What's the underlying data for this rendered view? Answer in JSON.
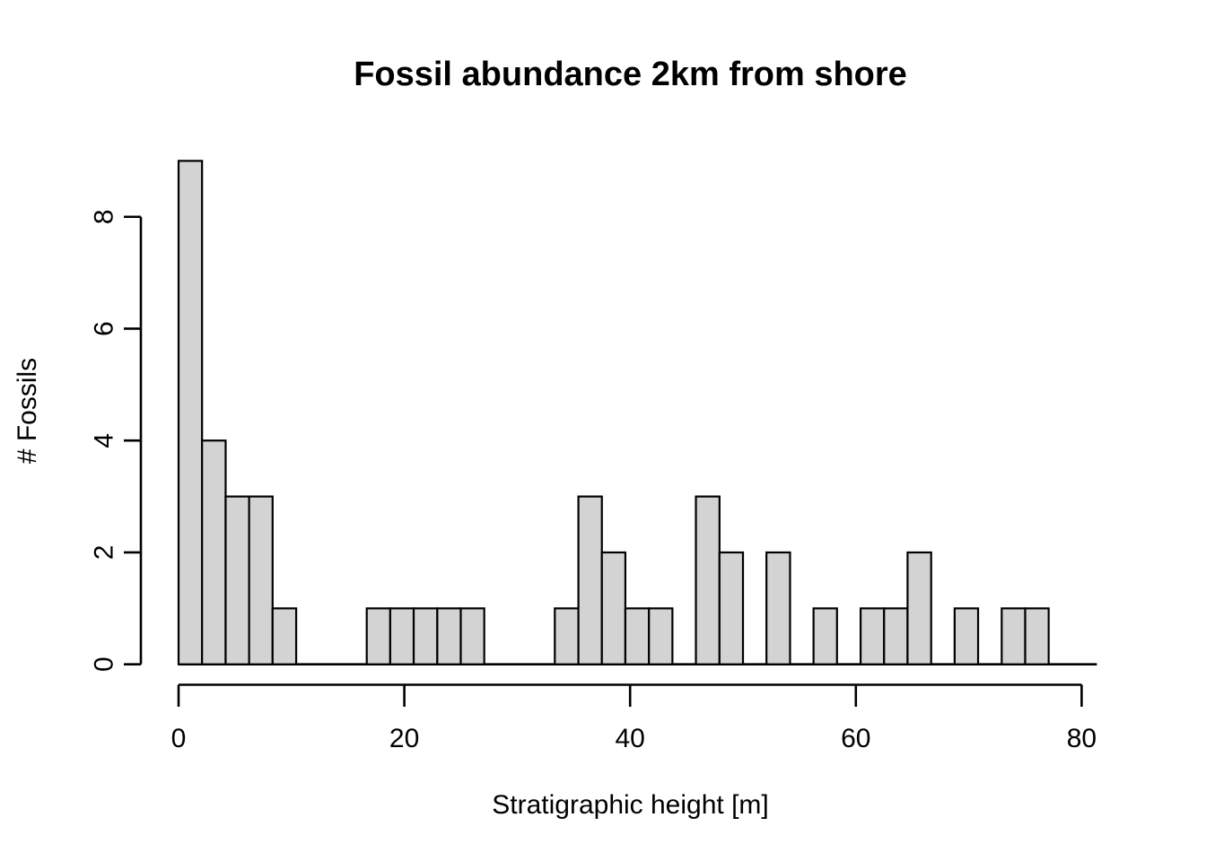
{
  "chart_data": {
    "type": "bar",
    "chart_kind": "histogram",
    "title": "Fossil abundance 2km from shore",
    "xlabel": "Stratigraphic height [m]",
    "ylabel": "# Fossils",
    "xlim": [
      0,
      80
    ],
    "ylim": [
      0,
      9
    ],
    "x_ticks": [
      0,
      20,
      40,
      60,
      80
    ],
    "y_ticks": [
      0,
      2,
      4,
      6,
      8
    ],
    "grid": "off",
    "legend": "none",
    "bin_width": 2.083,
    "bar_fill": "#d3d3d3",
    "bar_stroke": "#000000",
    "axis_color": "#000000",
    "text_color": "#000000",
    "bins": [
      {
        "start": 0,
        "end": 2.08,
        "count": 9
      },
      {
        "start": 2.08,
        "end": 4.17,
        "count": 4
      },
      {
        "start": 4.17,
        "end": 6.25,
        "count": 3
      },
      {
        "start": 6.25,
        "end": 8.33,
        "count": 3
      },
      {
        "start": 8.33,
        "end": 10.42,
        "count": 1
      },
      {
        "start": 16.67,
        "end": 18.75,
        "count": 1
      },
      {
        "start": 18.75,
        "end": 20.83,
        "count": 1
      },
      {
        "start": 20.83,
        "end": 22.92,
        "count": 1
      },
      {
        "start": 22.92,
        "end": 25,
        "count": 1
      },
      {
        "start": 25,
        "end": 27.08,
        "count": 1
      },
      {
        "start": 33.33,
        "end": 35.42,
        "count": 1
      },
      {
        "start": 35.42,
        "end": 37.5,
        "count": 3
      },
      {
        "start": 37.5,
        "end": 39.58,
        "count": 2
      },
      {
        "start": 39.58,
        "end": 41.67,
        "count": 1
      },
      {
        "start": 41.67,
        "end": 43.75,
        "count": 1
      },
      {
        "start": 45.83,
        "end": 47.92,
        "count": 3
      },
      {
        "start": 47.92,
        "end": 50,
        "count": 2
      },
      {
        "start": 52.08,
        "end": 54.17,
        "count": 2
      },
      {
        "start": 56.25,
        "end": 58.33,
        "count": 1
      },
      {
        "start": 60.42,
        "end": 62.5,
        "count": 1
      },
      {
        "start": 62.5,
        "end": 64.58,
        "count": 1
      },
      {
        "start": 64.58,
        "end": 66.67,
        "count": 2
      },
      {
        "start": 68.75,
        "end": 70.83,
        "count": 1
      },
      {
        "start": 72.92,
        "end": 75,
        "count": 1
      },
      {
        "start": 75,
        "end": 77.08,
        "count": 1
      }
    ]
  }
}
